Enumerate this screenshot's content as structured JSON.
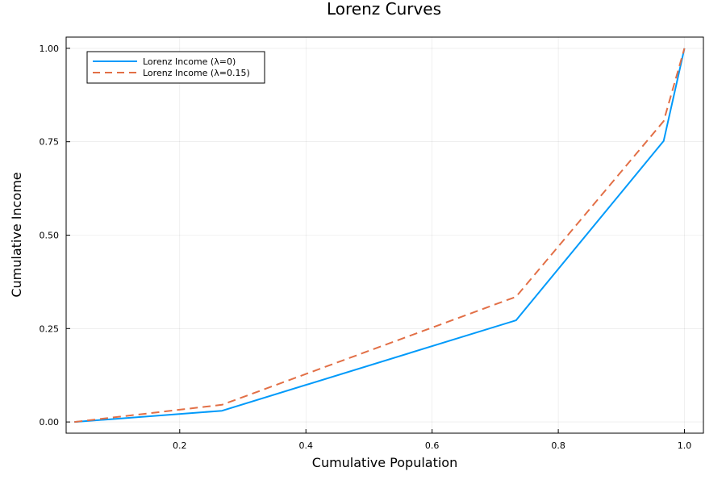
{
  "chart_data": {
    "type": "line",
    "title": "Lorenz Curves",
    "xlabel": "Cumulative Population",
    "ylabel": "Cumulative Income",
    "xlim": [
      0.02,
      1.03
    ],
    "ylim": [
      -0.03,
      1.03
    ],
    "x_ticks": [
      0.2,
      0.4,
      0.6,
      0.8,
      1.0
    ],
    "x_tick_labels": [
      "0.2",
      "0.4",
      "0.6",
      "0.8",
      "1.0"
    ],
    "y_ticks": [
      0.0,
      0.25,
      0.5,
      0.75,
      1.0
    ],
    "y_tick_labels": [
      "0.00",
      "0.25",
      "0.50",
      "0.75",
      "1.00"
    ],
    "grid": true,
    "legend_position": "top-left",
    "series": [
      {
        "name": "Lorenz Income (λ=0)",
        "color": "#009AFA",
        "style": "solid",
        "x": [
          0.033,
          0.267,
          0.733,
          0.967,
          1.0
        ],
        "y": [
          0.0,
          0.03,
          0.272,
          0.752,
          1.0
        ]
      },
      {
        "name": "Lorenz Income (λ=0.15)",
        "color": "#E26F46",
        "style": "dashed",
        "x": [
          0.033,
          0.267,
          0.733,
          0.967,
          1.0
        ],
        "y": [
          0.0,
          0.046,
          0.335,
          0.805,
          1.0
        ]
      }
    ]
  }
}
